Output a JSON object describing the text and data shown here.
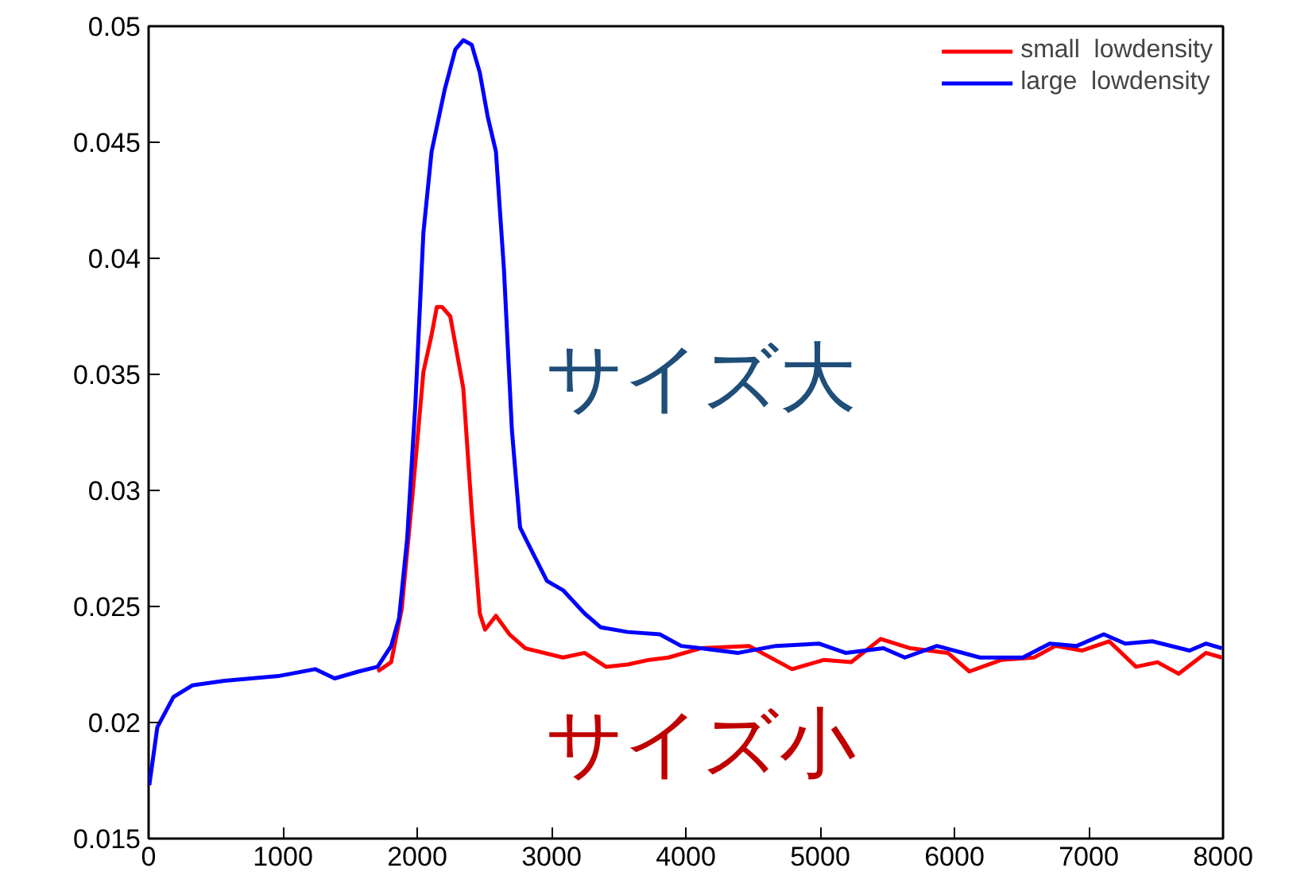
{
  "chart_data": {
    "type": "line",
    "xlim": [
      0,
      8000
    ],
    "ylim": [
      0.015,
      0.05
    ],
    "xticks": [
      0,
      1000,
      2000,
      3000,
      4000,
      5000,
      6000,
      7000,
      8000
    ],
    "yticks": [
      0.015,
      0.02,
      0.025,
      0.03,
      0.035,
      0.04,
      0.045,
      0.05
    ],
    "grid": false,
    "legend": "top right",
    "marker": "none",
    "line_style": "solid",
    "series": [
      {
        "name": "small  lowdensity",
        "color": "#ff0000",
        "x": [
          1705,
          1806,
          1885,
          1965,
          2046,
          2107,
          2146,
          2186,
          2246,
          2284,
          2343,
          2406,
          2466,
          2505,
          2586,
          2687,
          2805,
          3086,
          3246,
          3406,
          3567,
          3727,
          3870,
          4110,
          4470,
          4791,
          5030,
          5231,
          5451,
          5671,
          5951,
          6111,
          6351,
          6592,
          6752,
          6952,
          7152,
          7352,
          7512,
          7669,
          7872,
          7992
        ],
        "values": [
          0.0222,
          0.0226,
          0.0249,
          0.0298,
          0.0351,
          0.0367,
          0.0379,
          0.0379,
          0.0375,
          0.0363,
          0.0344,
          0.0291,
          0.0247,
          0.024,
          0.0246,
          0.0238,
          0.0232,
          0.0228,
          0.023,
          0.0224,
          0.0225,
          0.0227,
          0.0228,
          0.0232,
          0.0233,
          0.0223,
          0.0227,
          0.0226,
          0.0236,
          0.0232,
          0.023,
          0.0222,
          0.0227,
          0.0228,
          0.0233,
          0.0231,
          0.0235,
          0.0224,
          0.0226,
          0.0221,
          0.023,
          0.0228
        ]
      },
      {
        "name": "large  lowdensity",
        "color": "#0000ff",
        "x": [
          5,
          65,
          185,
          325,
          565,
          965,
          1240,
          1385,
          1565,
          1705,
          1806,
          1865,
          1925,
          1986,
          2046,
          2107,
          2206,
          2284,
          2343,
          2406,
          2466,
          2525,
          2586,
          2646,
          2705,
          2766,
          2826,
          2966,
          3086,
          3246,
          3367,
          3567,
          3806,
          3965,
          4110,
          4390,
          4670,
          4990,
          5190,
          5471,
          5631,
          5870,
          6190,
          6509,
          6710,
          6911,
          7112,
          7272,
          7472,
          7751,
          7872,
          7992
        ],
        "values": [
          0.0173,
          0.0198,
          0.0211,
          0.0216,
          0.0218,
          0.022,
          0.0223,
          0.0219,
          0.0222,
          0.0224,
          0.0233,
          0.0245,
          0.0279,
          0.0337,
          0.0411,
          0.0446,
          0.0473,
          0.049,
          0.0494,
          0.0492,
          0.048,
          0.0461,
          0.0446,
          0.0395,
          0.0326,
          0.0284,
          0.0277,
          0.0261,
          0.0257,
          0.0247,
          0.0241,
          0.0239,
          0.0238,
          0.0233,
          0.0232,
          0.023,
          0.0233,
          0.0234,
          0.023,
          0.0232,
          0.0228,
          0.0233,
          0.0228,
          0.0228,
          0.0234,
          0.0233,
          0.0238,
          0.0234,
          0.0235,
          0.0231,
          0.0234,
          0.0232
        ]
      }
    ],
    "annotations": [
      "サイズ大",
      "サイズ小"
    ]
  }
}
